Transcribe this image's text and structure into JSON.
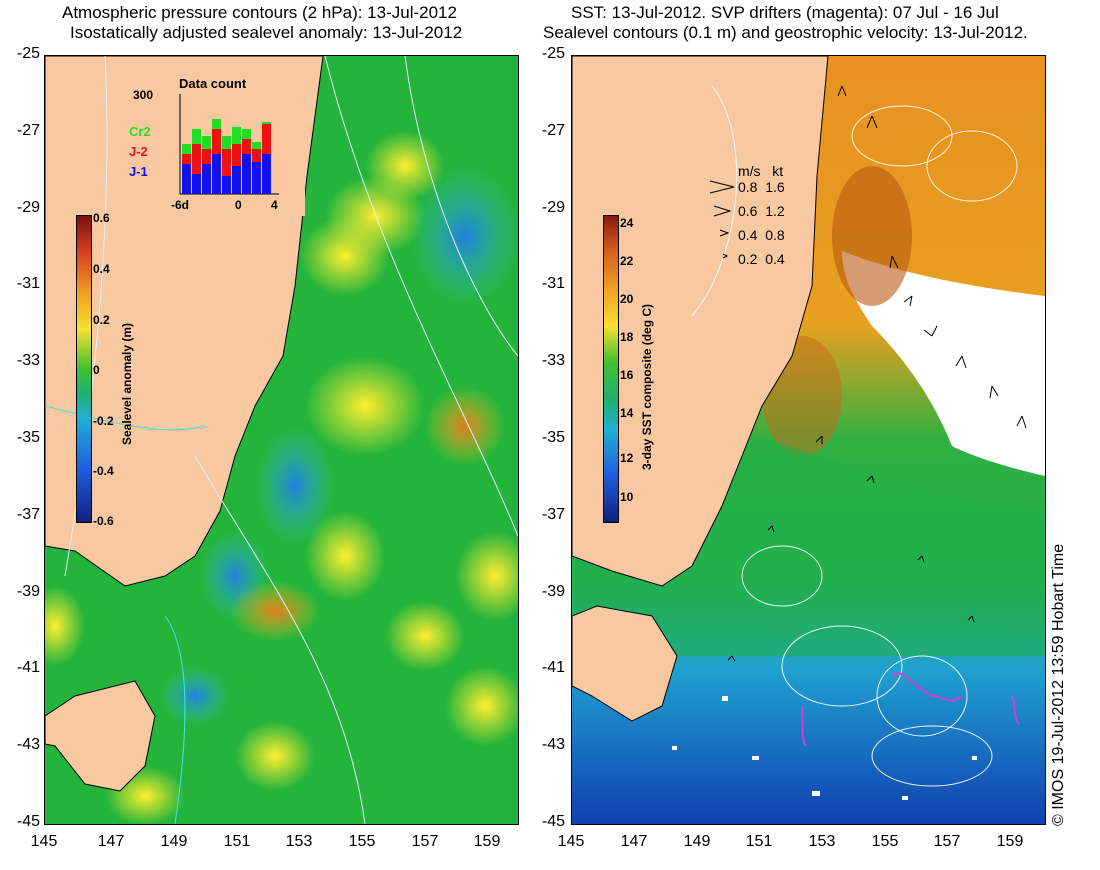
{
  "left_panel": {
    "title_line1": "Atmospheric pressure contours (2 hPa): 13-Jul-2012",
    "title_line2": "Isostatically adjusted sealevel anomaly: 13-Jul-2012",
    "colorbar": {
      "title": "Sealevel anomaly (m)",
      "ticks": [
        "0.6",
        "0.4",
        "0.2",
        "0",
        "-0.2",
        "-0.4",
        "-0.6"
      ]
    },
    "inset": {
      "title": "Data count",
      "ymax_label": "300",
      "x_labels": [
        "-6d",
        "0",
        "4"
      ],
      "series": [
        {
          "name": "Cr2",
          "color": "#22dd22"
        },
        {
          "name": "J-2",
          "color": "#ee1111"
        },
        {
          "name": "J-1",
          "color": "#1111ee"
        }
      ]
    }
  },
  "right_panel": {
    "title_line1": "SST: 13-Jul-2012. SVP drifters (magenta): 07 Jul - 16 Jul",
    "title_line2": "Sealevel contours (0.1 m) and geostrophic velocity: 13-Jul-2012.",
    "colorbar": {
      "title": "3-day SST composite (deg C)",
      "ticks": [
        "24",
        "22",
        "20",
        "18",
        "16",
        "14",
        "12",
        "10"
      ]
    },
    "velocity_legend": {
      "header_ms": "m/s",
      "header_kt": "kt",
      "rows": [
        {
          "ms": "0.8",
          "kt": "1.6"
        },
        {
          "ms": "0.6",
          "kt": "1.2"
        },
        {
          "ms": "0.4",
          "kt": "0.8"
        },
        {
          "ms": "0.2",
          "kt": "0.4"
        }
      ]
    }
  },
  "axes": {
    "lat_labels": [
      "-25",
      "-27",
      "-29",
      "-31",
      "-33",
      "-35",
      "-37",
      "-39",
      "-41",
      "-43",
      "-45"
    ],
    "lon_labels": [
      "145",
      "147",
      "149",
      "151",
      "153",
      "155",
      "157",
      "159"
    ]
  },
  "credit": "© IMOS 19-Jul-2012 13:59 Hobart Time",
  "colors": {
    "land": "#f8c8a0",
    "ocean_mid": "#22b040",
    "sst_warm": "#e89020",
    "sst_cold": "#1060d0"
  }
}
